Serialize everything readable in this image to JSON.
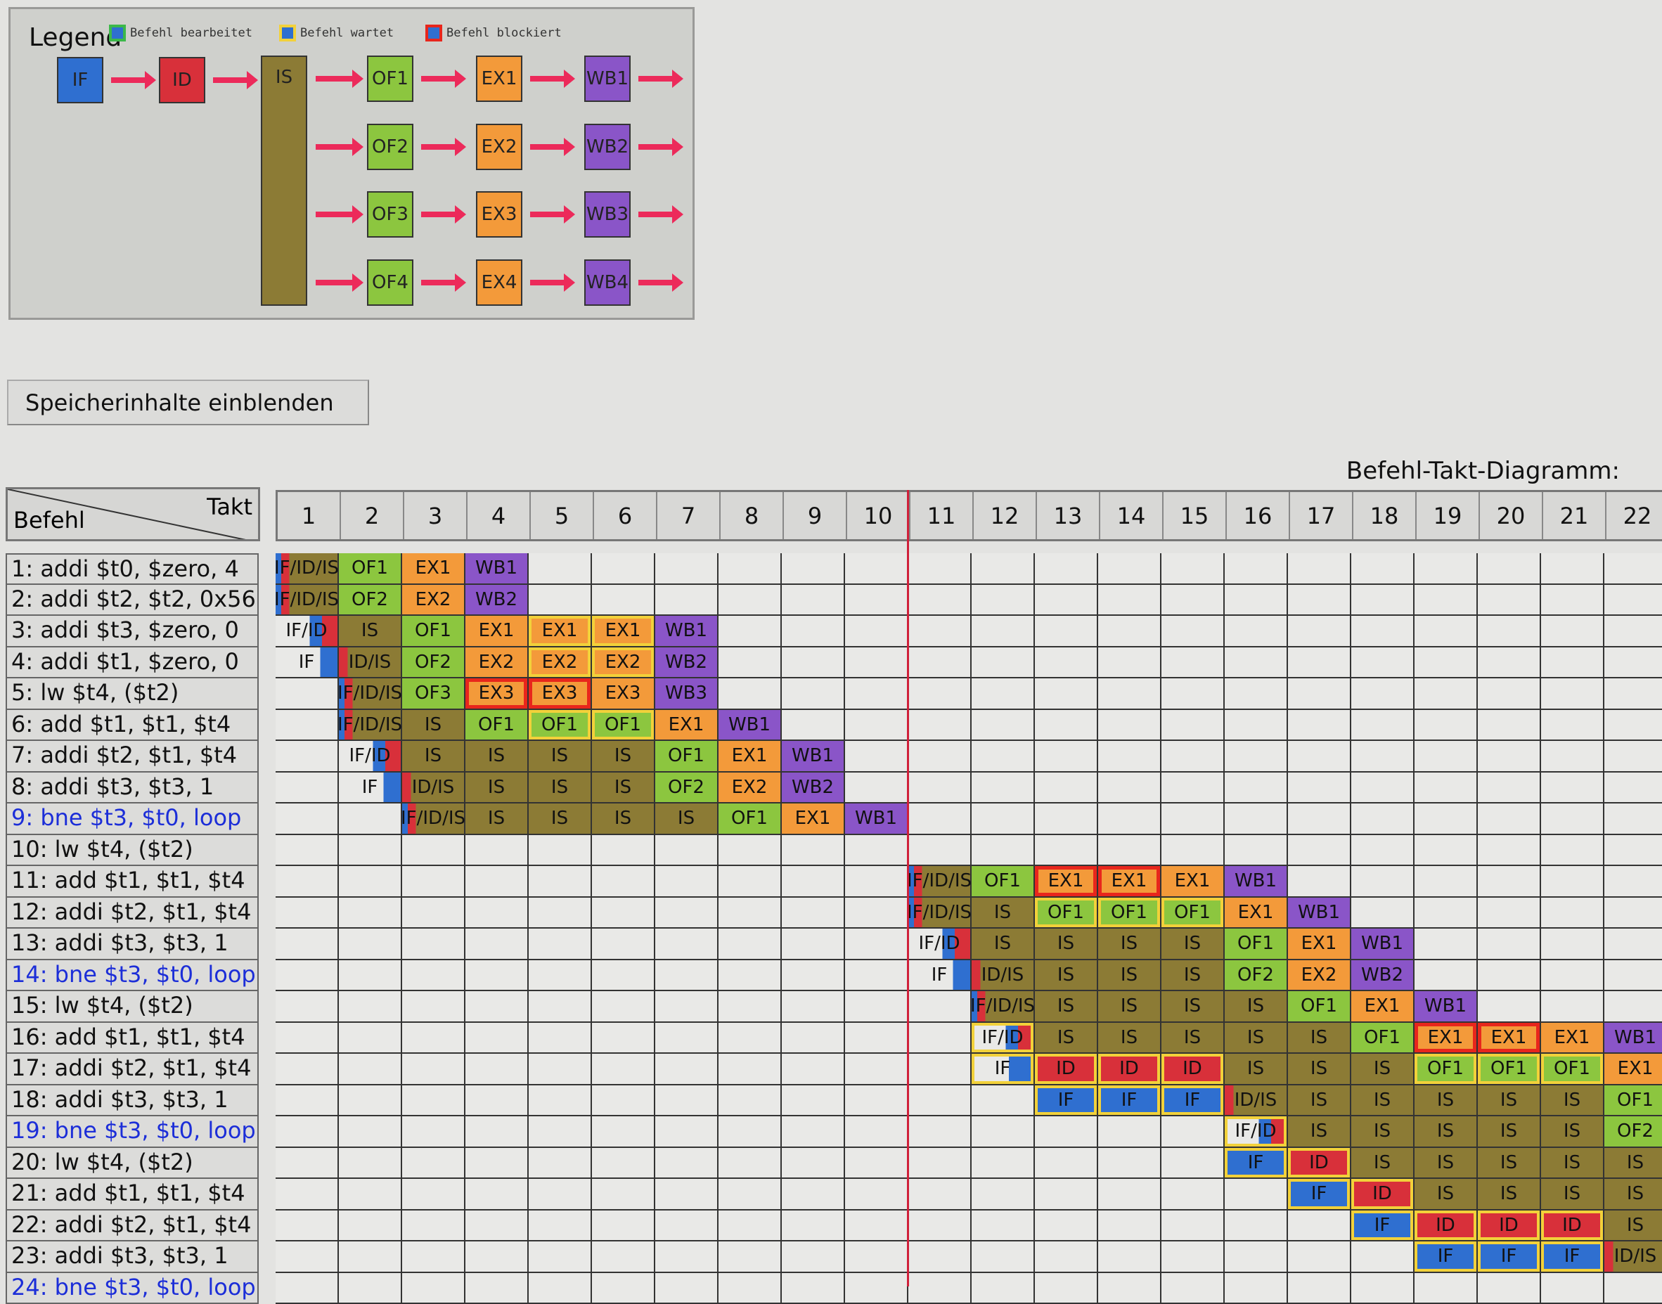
{
  "legend": {
    "title": "Legend",
    "items": [
      {
        "label": "Befehl bearbeitet",
        "border": "#3cb84a",
        "fill": "#2f6fd0"
      },
      {
        "label": "Befehl wartet",
        "border": "#f2d13a",
        "fill": "#2f6fd0"
      },
      {
        "label": "Befehl blockiert",
        "border": "#e8261c",
        "fill": "#2f6fd0"
      }
    ],
    "stages": {
      "if": "IF",
      "id": "ID",
      "is": "IS",
      "of": [
        "OF1",
        "OF2",
        "OF3",
        "OF4"
      ],
      "ex": [
        "EX1",
        "EX2",
        "EX3",
        "EX4"
      ],
      "wb": [
        "WB1",
        "WB2",
        "WB3",
        "WB4"
      ]
    }
  },
  "colors": {
    "IF": "#2f6fd0",
    "ID": "#d8303a",
    "IS": "#8c7b35",
    "OF": "#8cc63f",
    "EX": "#f39a3a",
    "WB": "#8a55c8",
    "arrow": "#ec2a5a",
    "current_cycle": "#d0203a"
  },
  "button": {
    "label": "Speicherinhalte einblenden"
  },
  "diagram": {
    "title": "Befehl-Takt-Diagramm:",
    "row_header": "Befehl",
    "col_header": "Takt",
    "current_cycle": 11,
    "cycles": [
      "1",
      "2",
      "3",
      "4",
      "5",
      "6",
      "7",
      "8",
      "9",
      "10",
      "11",
      "12",
      "13",
      "14",
      "15",
      "16",
      "17",
      "18",
      "19",
      "20",
      "21",
      "22"
    ],
    "rows": [
      {
        "label": "1:  addi $t0, $zero, 4",
        "branch": false,
        "cells": [
          [
            1,
            "IF/ID/IS",
            "n"
          ],
          [
            2,
            "OF1",
            "n"
          ],
          [
            3,
            "EX1",
            "n"
          ],
          [
            4,
            "WB1",
            "n"
          ]
        ]
      },
      {
        "label": "2:  addi $t2, $t2, 0x56",
        "branch": false,
        "cells": [
          [
            1,
            "IF/ID/IS",
            "n"
          ],
          [
            2,
            "OF2",
            "n"
          ],
          [
            3,
            "EX2",
            "n"
          ],
          [
            4,
            "WB2",
            "n"
          ]
        ]
      },
      {
        "label": "3:  addi $t3, $zero, 0",
        "branch": false,
        "cells": [
          [
            1,
            "IF/ID",
            "n"
          ],
          [
            2,
            "IS",
            "n"
          ],
          [
            3,
            "OF1",
            "n"
          ],
          [
            4,
            "EX1",
            "n"
          ],
          [
            5,
            "EX1",
            "w"
          ],
          [
            6,
            "EX1",
            "w"
          ],
          [
            7,
            "WB1",
            "n"
          ]
        ]
      },
      {
        "label": "4:  addi $t1, $zero, 0",
        "branch": false,
        "cells": [
          [
            1,
            "IF",
            "n"
          ],
          [
            2,
            "ID/IS",
            "n"
          ],
          [
            3,
            "OF2",
            "n"
          ],
          [
            4,
            "EX2",
            "n"
          ],
          [
            5,
            "EX2",
            "w"
          ],
          [
            6,
            "EX2",
            "w"
          ],
          [
            7,
            "WB2",
            "n"
          ]
        ]
      },
      {
        "label": "5:   lw $t4, ($t2)",
        "branch": false,
        "cells": [
          [
            2,
            "IF/ID/IS",
            "n"
          ],
          [
            3,
            "OF3",
            "n"
          ],
          [
            4,
            "EX3",
            "b"
          ],
          [
            5,
            "EX3",
            "b"
          ],
          [
            6,
            "EX3",
            "n"
          ],
          [
            7,
            "WB3",
            "n"
          ]
        ]
      },
      {
        "label": "6:  add $t1, $t1, $t4",
        "branch": false,
        "cells": [
          [
            2,
            "IF/ID/IS",
            "n"
          ],
          [
            3,
            "IS",
            "n"
          ],
          [
            4,
            "OF1",
            "n"
          ],
          [
            5,
            "OF1",
            "w"
          ],
          [
            6,
            "OF1",
            "w"
          ],
          [
            7,
            "EX1",
            "n"
          ],
          [
            8,
            "WB1",
            "n"
          ]
        ]
      },
      {
        "label": "7:  addi $t2, $t1, $t4",
        "branch": false,
        "cells": [
          [
            2,
            "IF/ID",
            "n"
          ],
          [
            3,
            "IS",
            "n"
          ],
          [
            4,
            "IS",
            "n"
          ],
          [
            5,
            "IS",
            "n"
          ],
          [
            6,
            "IS",
            "n"
          ],
          [
            7,
            "OF1",
            "n"
          ],
          [
            8,
            "EX1",
            "n"
          ],
          [
            9,
            "WB1",
            "n"
          ]
        ]
      },
      {
        "label": "8:  addi $t3, $t3, 1",
        "branch": false,
        "cells": [
          [
            2,
            "IF",
            "n"
          ],
          [
            3,
            "ID/IS",
            "n"
          ],
          [
            4,
            "IS",
            "n"
          ],
          [
            5,
            "IS",
            "n"
          ],
          [
            6,
            "IS",
            "n"
          ],
          [
            7,
            "OF2",
            "n"
          ],
          [
            8,
            "EX2",
            "n"
          ],
          [
            9,
            "WB2",
            "n"
          ]
        ]
      },
      {
        "label": "9:  bne $t3, $t0, loop",
        "branch": true,
        "cells": [
          [
            3,
            "IF/ID/IS",
            "n"
          ],
          [
            4,
            "IS",
            "n"
          ],
          [
            5,
            "IS",
            "n"
          ],
          [
            6,
            "IS",
            "n"
          ],
          [
            7,
            "IS",
            "n"
          ],
          [
            8,
            "OF1",
            "n"
          ],
          [
            9,
            "EX1",
            "n"
          ],
          [
            10,
            "WB1",
            "n"
          ]
        ]
      },
      {
        "label": "10: lw $t4, ($t2)",
        "branch": false,
        "cells": []
      },
      {
        "label": "11: add $t1, $t1, $t4",
        "branch": false,
        "cells": [
          [
            11,
            "IF/ID/IS",
            "n"
          ],
          [
            12,
            "OF1",
            "n"
          ],
          [
            13,
            "EX1",
            "b"
          ],
          [
            14,
            "EX1",
            "b"
          ],
          [
            15,
            "EX1",
            "n"
          ],
          [
            16,
            "WB1",
            "n"
          ]
        ]
      },
      {
        "label": "12: addi $t2, $t1, $t4",
        "branch": false,
        "cells": [
          [
            11,
            "IF/ID/IS",
            "n"
          ],
          [
            12,
            "IS",
            "n"
          ],
          [
            13,
            "OF1",
            "w"
          ],
          [
            14,
            "OF1",
            "w"
          ],
          [
            15,
            "OF1",
            "w"
          ],
          [
            16,
            "EX1",
            "n"
          ],
          [
            17,
            "WB1",
            "n"
          ]
        ]
      },
      {
        "label": "13: addi $t3, $t3, 1",
        "branch": false,
        "cells": [
          [
            11,
            "IF/ID",
            "n"
          ],
          [
            12,
            "IS",
            "n"
          ],
          [
            13,
            "IS",
            "n"
          ],
          [
            14,
            "IS",
            "n"
          ],
          [
            15,
            "IS",
            "n"
          ],
          [
            16,
            "OF1",
            "n"
          ],
          [
            17,
            "EX1",
            "n"
          ],
          [
            18,
            "WB1",
            "n"
          ]
        ]
      },
      {
        "label": "14: bne $t3, $t0, loop",
        "branch": true,
        "cells": [
          [
            11,
            "IF",
            "n"
          ],
          [
            12,
            "ID/IS",
            "n"
          ],
          [
            13,
            "IS",
            "n"
          ],
          [
            14,
            "IS",
            "n"
          ],
          [
            15,
            "IS",
            "n"
          ],
          [
            16,
            "OF2",
            "n"
          ],
          [
            17,
            "EX2",
            "n"
          ],
          [
            18,
            "WB2",
            "n"
          ]
        ]
      },
      {
        "label": "15: lw $t4, ($t2)",
        "branch": false,
        "cells": [
          [
            12,
            "IF/ID/IS",
            "n"
          ],
          [
            13,
            "IS",
            "n"
          ],
          [
            14,
            "IS",
            "n"
          ],
          [
            15,
            "IS",
            "n"
          ],
          [
            16,
            "IS",
            "n"
          ],
          [
            17,
            "OF1",
            "n"
          ],
          [
            18,
            "EX1",
            "n"
          ],
          [
            19,
            "WB1",
            "n"
          ]
        ]
      },
      {
        "label": "16: add $t1, $t1, $t4",
        "branch": false,
        "cells": [
          [
            12,
            "IF/ID",
            "w"
          ],
          [
            13,
            "IS",
            "n"
          ],
          [
            14,
            "IS",
            "n"
          ],
          [
            15,
            "IS",
            "n"
          ],
          [
            16,
            "IS",
            "n"
          ],
          [
            17,
            "IS",
            "n"
          ],
          [
            18,
            "OF1",
            "n"
          ],
          [
            19,
            "EX1",
            "b"
          ],
          [
            20,
            "EX1",
            "b"
          ],
          [
            21,
            "EX1",
            "n"
          ],
          [
            22,
            "WB1",
            "n"
          ]
        ]
      },
      {
        "label": "17: addi $t2, $t1, $t4",
        "branch": false,
        "cells": [
          [
            12,
            "IF",
            "w"
          ],
          [
            13,
            "ID",
            "w"
          ],
          [
            14,
            "ID",
            "w"
          ],
          [
            15,
            "ID",
            "w"
          ],
          [
            16,
            "IS",
            "n"
          ],
          [
            17,
            "IS",
            "n"
          ],
          [
            18,
            "IS",
            "n"
          ],
          [
            19,
            "OF1",
            "w"
          ],
          [
            20,
            "OF1",
            "w"
          ],
          [
            21,
            "OF1",
            "w"
          ],
          [
            22,
            "EX1",
            "n"
          ]
        ]
      },
      {
        "label": "18: addi $t3, $t3, 1",
        "branch": false,
        "cells": [
          [
            13,
            "IF",
            "w"
          ],
          [
            14,
            "IF",
            "w"
          ],
          [
            15,
            "IF",
            "w"
          ],
          [
            16,
            "ID/IS",
            "n"
          ],
          [
            17,
            "IS",
            "n"
          ],
          [
            18,
            "IS",
            "n"
          ],
          [
            19,
            "IS",
            "n"
          ],
          [
            20,
            "IS",
            "n"
          ],
          [
            21,
            "IS",
            "n"
          ],
          [
            22,
            "OF1",
            "n"
          ]
        ]
      },
      {
        "label": "19: bne $t3, $t0, loop",
        "branch": true,
        "cells": [
          [
            16,
            "IF/ID",
            "w"
          ],
          [
            17,
            "IS",
            "n"
          ],
          [
            18,
            "IS",
            "n"
          ],
          [
            19,
            "IS",
            "n"
          ],
          [
            20,
            "IS",
            "n"
          ],
          [
            21,
            "IS",
            "n"
          ],
          [
            22,
            "OF2",
            "n"
          ]
        ]
      },
      {
        "label": "20: lw $t4, ($t2)",
        "branch": false,
        "cells": [
          [
            16,
            "IF",
            "w"
          ],
          [
            17,
            "ID",
            "w"
          ],
          [
            18,
            "IS",
            "n"
          ],
          [
            19,
            "IS",
            "n"
          ],
          [
            20,
            "IS",
            "n"
          ],
          [
            21,
            "IS",
            "n"
          ],
          [
            22,
            "IS",
            "n"
          ]
        ]
      },
      {
        "label": "21: add $t1, $t1, $t4",
        "branch": false,
        "cells": [
          [
            17,
            "IF",
            "w"
          ],
          [
            18,
            "ID",
            "w"
          ],
          [
            19,
            "IS",
            "n"
          ],
          [
            20,
            "IS",
            "n"
          ],
          [
            21,
            "IS",
            "n"
          ],
          [
            22,
            "IS",
            "n"
          ]
        ]
      },
      {
        "label": "22: addi $t2, $t1, $t4",
        "branch": false,
        "cells": [
          [
            18,
            "IF",
            "w"
          ],
          [
            19,
            "ID",
            "w"
          ],
          [
            20,
            "ID",
            "w"
          ],
          [
            21,
            "ID",
            "w"
          ],
          [
            22,
            "IS",
            "n"
          ]
        ]
      },
      {
        "label": "23: addi $t3, $t3, 1",
        "branch": false,
        "cells": [
          [
            19,
            "IF",
            "w"
          ],
          [
            20,
            "IF",
            "w"
          ],
          [
            21,
            "IF",
            "w"
          ],
          [
            22,
            "ID/IS",
            "n"
          ]
        ]
      },
      {
        "label": "24: bne $t3, $t0, loop",
        "branch": true,
        "cells": []
      }
    ]
  }
}
